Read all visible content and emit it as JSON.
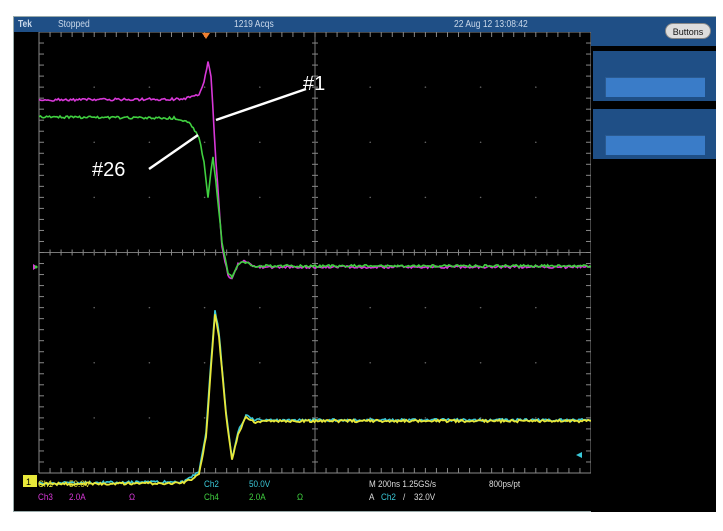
{
  "titlebar": {
    "brand": "Tek",
    "status": "Stopped",
    "acquisitions": "1219 Acqs",
    "datetime": "22 Aug 12 13:08:42"
  },
  "right_panel": {
    "buttons_label": "Buttons"
  },
  "annotations": {
    "label_1": "#1",
    "label_2": "#26"
  },
  "markers": {
    "ch1_ground": "1"
  },
  "readouts": {
    "ch1": {
      "name": "Ch1",
      "scale": "50.0V"
    },
    "ch2": {
      "name": "Ch2",
      "scale": "50.0V"
    },
    "ch3": {
      "name": "Ch3",
      "scale": "2.0A",
      "termination": "Ω"
    },
    "ch4": {
      "name": "Ch4",
      "scale": "2.0A",
      "termination": "Ω"
    },
    "horizontal": "M 200ns 1.25GS/s",
    "record": "800ps/pt",
    "trigger": {
      "prefix": "A",
      "source": "Ch2",
      "slope": "/",
      "level": "32.0V"
    }
  },
  "colors": {
    "ch1": "#e8e83a",
    "ch2": "#3ac8d8",
    "ch3": "#d838d8",
    "ch4": "#40d040",
    "titlebar": "#1f4f86",
    "panel_button": "#3a7cc8",
    "trigger_marker": "#f08030"
  }
}
